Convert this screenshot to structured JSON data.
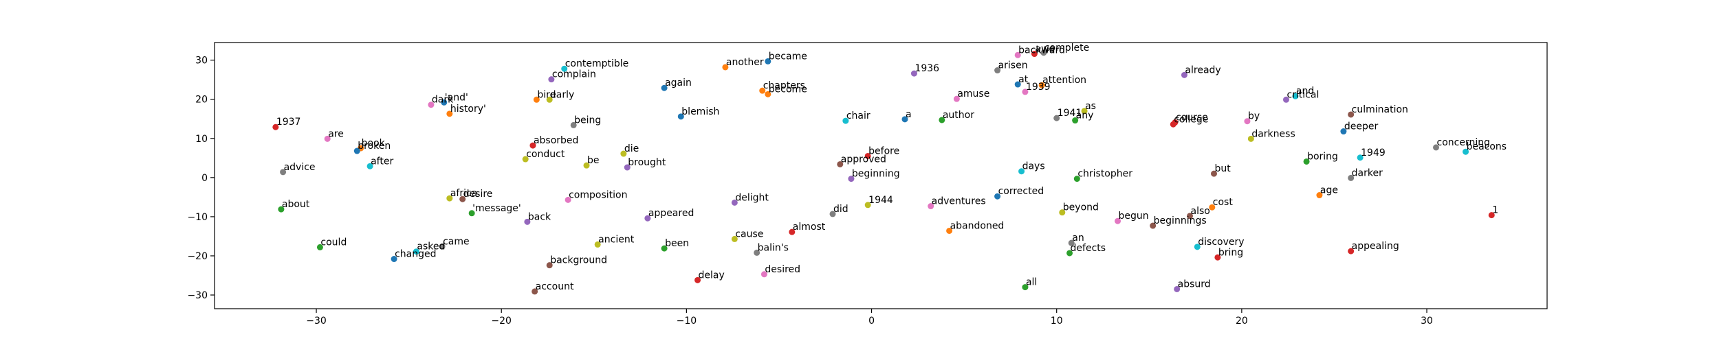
{
  "chart_data": {
    "type": "scatter",
    "title": "",
    "xlabel": "",
    "ylabel": "",
    "xlim": [
      -35.5,
      36.5
    ],
    "ylim": [
      -33.5,
      34.5
    ],
    "xticks": [
      -30,
      -20,
      -10,
      0,
      10,
      20,
      30
    ],
    "yticks": [
      -30,
      -20,
      -10,
      0,
      10,
      20,
      30
    ],
    "grid": false,
    "legend": "none",
    "palette": [
      "#1f77b4",
      "#ff7f0e",
      "#2ca02c",
      "#d62728",
      "#9467bd",
      "#8c564b",
      "#e377c2",
      "#7f7f7f",
      "#bcbd22",
      "#17becf"
    ],
    "points": [
      {
        "label": "1937",
        "x": -32.2,
        "y": 12.9,
        "c": 3
      },
      {
        "label": "advice",
        "x": -31.8,
        "y": 1.4,
        "c": 7
      },
      {
        "label": "about",
        "x": -31.9,
        "y": -8.1,
        "c": 2
      },
      {
        "label": "are",
        "x": -29.4,
        "y": 9.9,
        "c": 6
      },
      {
        "label": "could",
        "x": -29.8,
        "y": -17.8,
        "c": 2
      },
      {
        "label": "book",
        "x": -27.6,
        "y": 7.5,
        "c": 1
      },
      {
        "label": "broken",
        "x": -27.8,
        "y": 6.8,
        "c": 0
      },
      {
        "label": "after",
        "x": -27.1,
        "y": 2.9,
        "c": 9
      },
      {
        "label": "changed",
        "x": -25.8,
        "y": -20.8,
        "c": 0
      },
      {
        "label": "asked",
        "x": -24.6,
        "y": -18.9,
        "c": 9
      },
      {
        "label": "came",
        "x": -23.2,
        "y": -17.6,
        "c": 7
      },
      {
        "label": "dark",
        "x": -23.8,
        "y": 18.6,
        "c": 6
      },
      {
        "label": "'and'",
        "x": -23.1,
        "y": 19.2,
        "c": 0
      },
      {
        "label": "history'",
        "x": -22.8,
        "y": 16.3,
        "c": 1
      },
      {
        "label": "africa",
        "x": -22.8,
        "y": -5.3,
        "c": 8
      },
      {
        "label": "desire",
        "x": -22.1,
        "y": -5.5,
        "c": 5
      },
      {
        "label": "'message'",
        "x": -21.6,
        "y": -9.1,
        "c": 2
      },
      {
        "label": "conduct",
        "x": -18.7,
        "y": 4.7,
        "c": 8
      },
      {
        "label": "absorbed",
        "x": -18.3,
        "y": 8.2,
        "c": 3
      },
      {
        "label": "back",
        "x": -18.6,
        "y": -11.3,
        "c": 4
      },
      {
        "label": "account",
        "x": -18.2,
        "y": -29.1,
        "c": 5
      },
      {
        "label": "bird",
        "x": -18.1,
        "y": 19.9,
        "c": 1
      },
      {
        "label": "early",
        "x": -17.4,
        "y": 19.9,
        "c": 8
      },
      {
        "label": "complain",
        "x": -17.3,
        "y": 25.1,
        "c": 4
      },
      {
        "label": "contemptible",
        "x": -16.6,
        "y": 27.8,
        "c": 9
      },
      {
        "label": "background",
        "x": -17.4,
        "y": -22.4,
        "c": 5
      },
      {
        "label": "being",
        "x": -16.1,
        "y": 13.4,
        "c": 7
      },
      {
        "label": "composition",
        "x": -16.4,
        "y": -5.7,
        "c": 6
      },
      {
        "label": "be",
        "x": -15.4,
        "y": 3.1,
        "c": 8
      },
      {
        "label": "ancient",
        "x": -14.8,
        "y": -17.1,
        "c": 8
      },
      {
        "label": "die",
        "x": -13.4,
        "y": 6.1,
        "c": 8
      },
      {
        "label": "brought",
        "x": -13.2,
        "y": 2.6,
        "c": 4
      },
      {
        "label": "appeared",
        "x": -12.1,
        "y": -10.4,
        "c": 4
      },
      {
        "label": "again",
        "x": -11.2,
        "y": 22.9,
        "c": 0
      },
      {
        "label": "been",
        "x": -11.2,
        "y": -18.1,
        "c": 2
      },
      {
        "label": "blemish",
        "x": -10.3,
        "y": 15.6,
        "c": 0
      },
      {
        "label": "delay",
        "x": -9.4,
        "y": -26.2,
        "c": 3
      },
      {
        "label": "another",
        "x": -7.9,
        "y": 28.2,
        "c": 1
      },
      {
        "label": "delight",
        "x": -7.4,
        "y": -6.4,
        "c": 4
      },
      {
        "label": "cause",
        "x": -7.4,
        "y": -15.7,
        "c": 8
      },
      {
        "label": "balin's",
        "x": -6.2,
        "y": -19.2,
        "c": 7
      },
      {
        "label": "desired",
        "x": -5.8,
        "y": -24.7,
        "c": 6
      },
      {
        "label": "became",
        "x": -5.6,
        "y": 29.7,
        "c": 0
      },
      {
        "label": "chapters",
        "x": -5.9,
        "y": 22.2,
        "c": 1
      },
      {
        "label": "become",
        "x": -5.6,
        "y": 21.3,
        "c": 1
      },
      {
        "label": "almost",
        "x": -4.3,
        "y": -13.9,
        "c": 3
      },
      {
        "label": "did",
        "x": -2.1,
        "y": -9.3,
        "c": 7
      },
      {
        "label": "approved",
        "x": -1.7,
        "y": 3.4,
        "c": 5
      },
      {
        "label": "chair",
        "x": -1.4,
        "y": 14.5,
        "c": 9
      },
      {
        "label": "beginning",
        "x": -1.1,
        "y": -0.3,
        "c": 4
      },
      {
        "label": "before",
        "x": -0.2,
        "y": 5.5,
        "c": 3
      },
      {
        "label": "1944",
        "x": -0.2,
        "y": -7.0,
        "c": 8
      },
      {
        "label": "a",
        "x": 1.8,
        "y": 14.9,
        "c": 0
      },
      {
        "label": "1936",
        "x": 2.3,
        "y": 26.6,
        "c": 4
      },
      {
        "label": "adventures",
        "x": 3.2,
        "y": -7.3,
        "c": 6
      },
      {
        "label": "author",
        "x": 3.8,
        "y": 14.7,
        "c": 2
      },
      {
        "label": "abandoned",
        "x": 4.2,
        "y": -13.6,
        "c": 1
      },
      {
        "label": "amuse",
        "x": 4.6,
        "y": 20.1,
        "c": 6
      },
      {
        "label": "corrected",
        "x": 6.8,
        "y": -4.8,
        "c": 0
      },
      {
        "label": "arisen",
        "x": 6.8,
        "y": 27.4,
        "c": 7
      },
      {
        "label": "at",
        "x": 7.9,
        "y": 23.8,
        "c": 0
      },
      {
        "label": "backward",
        "x": 7.9,
        "y": 31.3,
        "c": 6
      },
      {
        "label": "days",
        "x": 8.1,
        "y": 1.6,
        "c": 9
      },
      {
        "label": "1939",
        "x": 8.3,
        "y": 21.9,
        "c": 6
      },
      {
        "label": "all",
        "x": 8.3,
        "y": -28.0,
        "c": 2
      },
      {
        "label": "awe",
        "x": 8.8,
        "y": 31.6,
        "c": 3
      },
      {
        "label": "complete",
        "x": 9.3,
        "y": 31.9,
        "c": 7
      },
      {
        "label": "attention",
        "x": 9.2,
        "y": 23.6,
        "c": 1
      },
      {
        "label": "beyond",
        "x": 10.3,
        "y": -8.9,
        "c": 8
      },
      {
        "label": "1941",
        "x": 10.0,
        "y": 15.2,
        "c": 7
      },
      {
        "label": "an",
        "x": 10.8,
        "y": -16.7,
        "c": 7
      },
      {
        "label": "defects",
        "x": 10.7,
        "y": -19.3,
        "c": 2
      },
      {
        "label": "any",
        "x": 11.0,
        "y": 14.6,
        "c": 2
      },
      {
        "label": "christopher",
        "x": 11.1,
        "y": -0.3,
        "c": 2
      },
      {
        "label": "as",
        "x": 11.5,
        "y": 17.0,
        "c": 8
      },
      {
        "label": "begun",
        "x": 13.3,
        "y": -11.1,
        "c": 6
      },
      {
        "label": "beginnings",
        "x": 15.2,
        "y": -12.3,
        "c": 5
      },
      {
        "label": "course",
        "x": 16.4,
        "y": 14.1,
        "c": 3
      },
      {
        "label": "college",
        "x": 16.3,
        "y": 13.6,
        "c": 3
      },
      {
        "label": "absurd",
        "x": 16.5,
        "y": -28.5,
        "c": 4
      },
      {
        "label": "already",
        "x": 16.9,
        "y": 26.2,
        "c": 4
      },
      {
        "label": "also",
        "x": 17.2,
        "y": -9.8,
        "c": 5
      },
      {
        "label": "discovery",
        "x": 17.6,
        "y": -17.7,
        "c": 9
      },
      {
        "label": "cost",
        "x": 18.4,
        "y": -7.6,
        "c": 1
      },
      {
        "label": "but",
        "x": 18.5,
        "y": 1.0,
        "c": 5
      },
      {
        "label": "bring",
        "x": 18.7,
        "y": -20.4,
        "c": 3
      },
      {
        "label": "by",
        "x": 20.3,
        "y": 14.4,
        "c": 6
      },
      {
        "label": "darkness",
        "x": 20.5,
        "y": 9.9,
        "c": 8
      },
      {
        "label": "critical",
        "x": 22.4,
        "y": 19.9,
        "c": 4
      },
      {
        "label": "and",
        "x": 22.9,
        "y": 20.8,
        "c": 9
      },
      {
        "label": "boring",
        "x": 23.5,
        "y": 4.1,
        "c": 2
      },
      {
        "label": "age",
        "x": 24.2,
        "y": -4.5,
        "c": 1
      },
      {
        "label": "deeper",
        "x": 25.5,
        "y": 11.8,
        "c": 0
      },
      {
        "label": "darker",
        "x": 25.9,
        "y": -0.1,
        "c": 7
      },
      {
        "label": "culmination",
        "x": 25.9,
        "y": 16.1,
        "c": 5
      },
      {
        "label": "appealing",
        "x": 25.9,
        "y": -18.8,
        "c": 3
      },
      {
        "label": "1949",
        "x": 26.4,
        "y": 5.1,
        "c": 9
      },
      {
        "label": "concerning",
        "x": 30.5,
        "y": 7.7,
        "c": 7
      },
      {
        "label": "beacons",
        "x": 32.1,
        "y": 6.6,
        "c": 9
      },
      {
        "label": "1",
        "x": 33.5,
        "y": -9.6,
        "c": 3
      }
    ]
  }
}
